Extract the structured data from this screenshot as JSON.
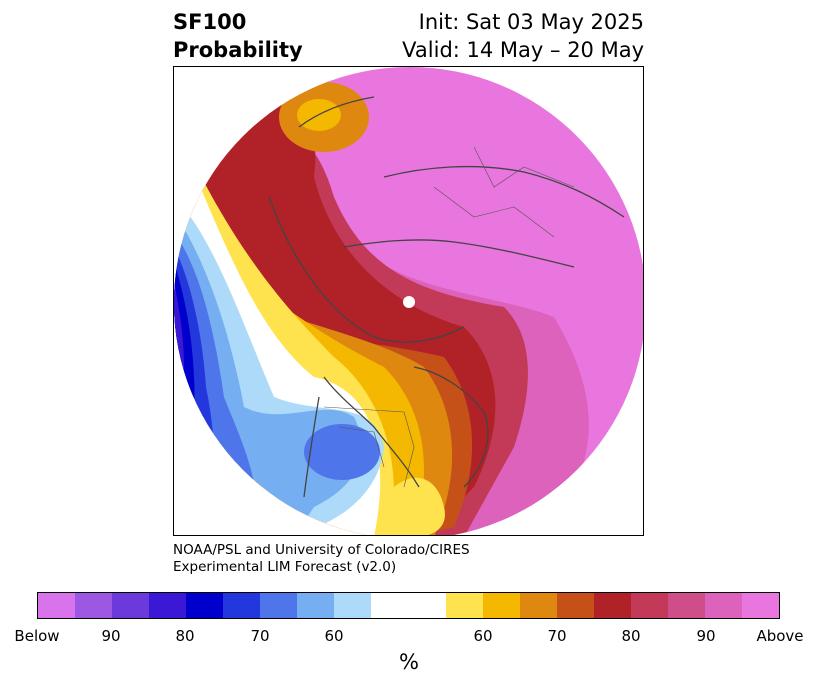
{
  "title": {
    "left_line1": "SF100",
    "left_line2": "Probability",
    "right_line1": "Init: Sat 03 May 2025",
    "right_line2": "Valid: 14 May – 20 May"
  },
  "credit": {
    "line1": "NOAA/PSL and University of Colorado/CIRES",
    "line2": "Experimental LIM Forecast (v2.0)"
  },
  "colorbar": {
    "segments": [
      {
        "color": "#d873ec"
      },
      {
        "color": "#9c58e2"
      },
      {
        "color": "#6c39db"
      },
      {
        "color": "#3a18d6"
      },
      {
        "color": "#0000cd"
      },
      {
        "color": "#2238dc"
      },
      {
        "color": "#4e76ea"
      },
      {
        "color": "#76aef2"
      },
      {
        "color": "#acdaf8"
      },
      {
        "color": "#ffffff"
      },
      {
        "color": "#ffe34e"
      },
      {
        "color": "#f5b800"
      },
      {
        "color": "#df8810"
      },
      {
        "color": "#c55018"
      },
      {
        "color": "#b02228"
      },
      {
        "color": "#c23a58"
      },
      {
        "color": "#cf4e8a"
      },
      {
        "color": "#dc62bc"
      },
      {
        "color": "#e876de"
      }
    ],
    "tick_labels": [
      "Below",
      "90",
      "80",
      "70",
      "60",
      "60",
      "70",
      "80",
      "90",
      "Above"
    ],
    "unit": "%"
  }
}
